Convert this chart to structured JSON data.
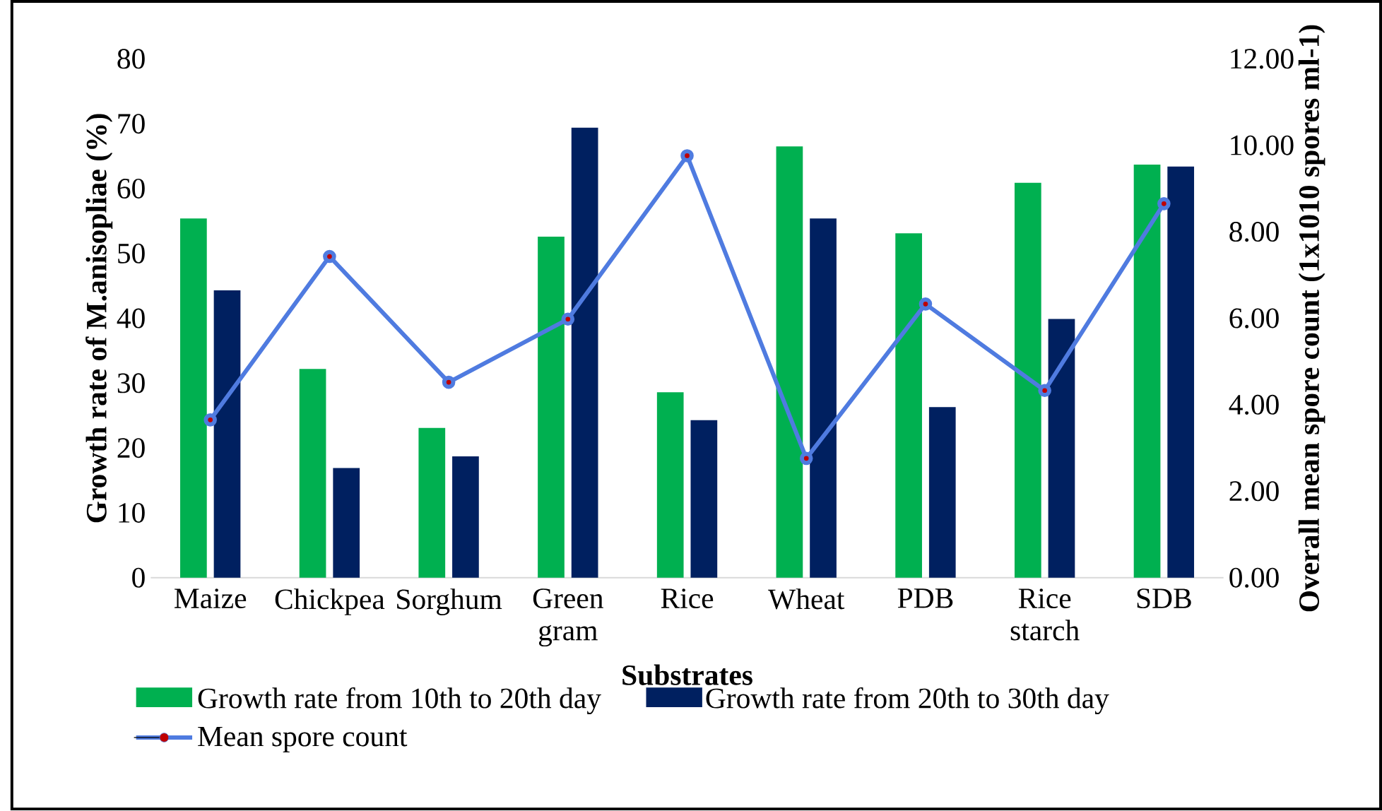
{
  "chart_data": {
    "type": "bar",
    "xlabel": "Substrates",
    "ylabel": "Growth rate of M.anisopliae (%)",
    "y2label": "Overall mean spore count (1x1010 spores ml-1)",
    "categories": [
      "Maize",
      "Chickpea",
      "Sorghum",
      "Green gram",
      "Rice",
      "Wheat",
      "PDB",
      "Rice starch",
      "SDB"
    ],
    "series": [
      {
        "name": "Growth rate from 10th to 20th day",
        "color": "#00b050",
        "values": [
          55.4,
          32.2,
          23.1,
          52.6,
          28.6,
          66.5,
          53.1,
          60.9,
          63.7
        ]
      },
      {
        "name": "Growth rate from 20th to 30th day",
        "color": "#002060",
        "values": [
          44.3,
          16.9,
          18.7,
          69.4,
          24.3,
          55.4,
          26.3,
          39.9,
          63.4
        ]
      },
      {
        "name": "Mean spore count",
        "type": "line",
        "axis": "y2",
        "color": "#4f7be0",
        "values": [
          3.65,
          7.43,
          4.52,
          5.98,
          9.76,
          2.76,
          6.33,
          4.33,
          8.65
        ]
      }
    ],
    "ylim": [
      0,
      80
    ],
    "yticks": [
      0,
      10,
      20,
      30,
      40,
      50,
      60,
      70,
      80
    ],
    "y2lim": [
      0,
      12
    ],
    "y2ticks": [
      {
        "value": 0,
        "label": "0.00"
      },
      {
        "value": 2,
        "label": "2.00"
      },
      {
        "value": 4,
        "label": "4.00"
      },
      {
        "value": 6,
        "label": "6.00"
      },
      {
        "value": 8,
        "label": "8.00"
      },
      {
        "value": 10,
        "label": "10.00"
      },
      {
        "value": 12,
        "label": "12.00"
      }
    ],
    "legend": "bottom",
    "marker": "circle",
    "line_style": "solid"
  }
}
